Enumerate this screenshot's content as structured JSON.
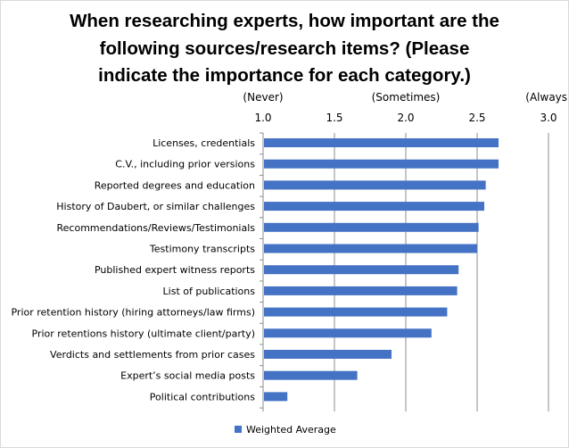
{
  "chart_data": {
    "type": "bar",
    "orientation": "horizontal",
    "title_lines": [
      "When researching experts, how important are the",
      "following sources/research items?  (Please",
      "indicate the importance for each category.)"
    ],
    "scale_labels": [
      {
        "label": "(Never)",
        "at": 1.0
      },
      {
        "label": "(Sometimes)",
        "at": 2.0
      },
      {
        "label": "(Always)",
        "at": 3.0
      }
    ],
    "xlim": [
      1.0,
      3.0
    ],
    "xticks": [
      "1.0",
      "1.5",
      "2.0",
      "2.5",
      "3.0"
    ],
    "xtick_values": [
      1.0,
      1.5,
      2.0,
      2.5,
      3.0
    ],
    "grid": true,
    "categories": [
      "Licenses, credentials",
      "C.V., including prior versions",
      "Reported degrees and education",
      "History of Daubert, or similar challenges",
      "Recommendations/Reviews/Testimonials",
      "Testimony transcripts",
      "Published expert witness reports",
      "List of publications",
      "Prior retention history (hiring attorneys/law firms)",
      "Prior retentions history (ultimate client/party)",
      "Verdicts and settlements from prior cases",
      "Expert’s social media posts",
      "Political contributions"
    ],
    "series": [
      {
        "name": "Weighted Average",
        "color": "#4472c4",
        "values": [
          2.65,
          2.65,
          2.56,
          2.55,
          2.51,
          2.5,
          2.37,
          2.36,
          2.29,
          2.18,
          1.9,
          1.66,
          1.17
        ]
      }
    ],
    "legend": {
      "position": "bottom",
      "label": "Weighted Average"
    }
  }
}
